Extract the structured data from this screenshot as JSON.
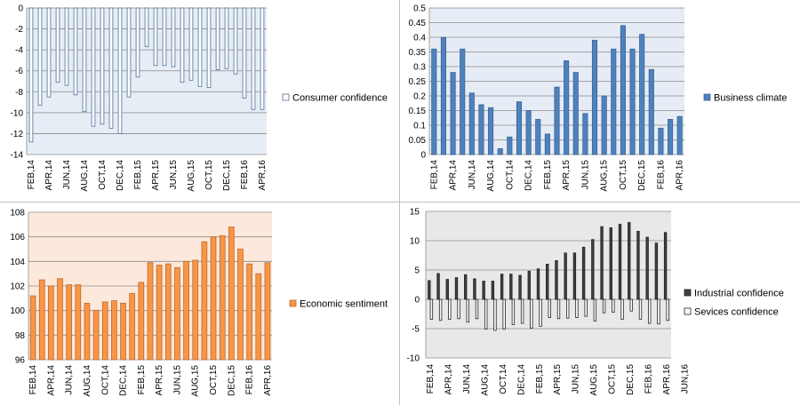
{
  "months": [
    "FEB,14",
    "MAR,14",
    "APR,14",
    "MAY,14",
    "JUN,14",
    "JUL,14",
    "AUG,14",
    "SEP,14",
    "OCT,14",
    "NOV,14",
    "DEC,14",
    "JAN,15",
    "FEB,15",
    "MAR,15",
    "APR,15",
    "MAY,15",
    "JUN,15",
    "JUL,15",
    "AUG,15",
    "SEP,15",
    "OCT,15",
    "NOV,15",
    "DEC,15",
    "JAN,16",
    "FEB,16",
    "MAR,16",
    "APR,16"
  ],
  "colors": {
    "consumer_fill": "#ffffff",
    "consumer_stroke": "#4f6f94",
    "consumer_bg": "#e6edf5",
    "business_fill": "#4f81bd",
    "business_stroke": "#3a6597",
    "business_bg": "#e6ecf5",
    "economic_fill": "#f79646",
    "economic_stroke": "#c0692a",
    "economic_bg": "#fde9dc",
    "industrial_fill": "#404040",
    "services_fill": "#ffffff",
    "dual_stroke": "#222222",
    "dual_bg": "#e8e8e8",
    "grid": "#8c8c8c"
  },
  "chart_data": [
    {
      "type": "bar",
      "categories_ref": "months",
      "series": [
        {
          "name": "Consumer confidence",
          "values": [
            -12.8,
            -9.3,
            -8.5,
            -7.1,
            -7.4,
            -8.3,
            -9.9,
            -11.3,
            -11.1,
            -11.5,
            -12.0,
            -8.5,
            -6.6,
            -3.7,
            -5.5,
            -5.5,
            -5.6,
            -7.1,
            -6.9,
            -7.5,
            -7.6,
            -5.9,
            -5.8,
            -6.3,
            -8.6,
            -9.7,
            -9.7
          ]
        }
      ],
      "ylim": [
        -14,
        0
      ],
      "yticks": [
        "0",
        "-2",
        "-4",
        "-6",
        "-8",
        "-10",
        "-12",
        "-14"
      ],
      "xticks": [
        "FEB,14",
        "APR,14",
        "JUN,14",
        "AUG,14",
        "OCT,14",
        "DEC,14",
        "FEB,15",
        "APR,15",
        "JUN,15",
        "AUG,15",
        "OCT,15",
        "DEC,15",
        "FEB,16",
        "APR,16"
      ],
      "legend_position": "right",
      "grid": true
    },
    {
      "type": "bar",
      "categories_ref": "months",
      "series": [
        {
          "name": "Business climate",
          "values": [
            0.36,
            0.4,
            0.28,
            0.36,
            0.21,
            0.17,
            0.16,
            0.02,
            0.06,
            0.18,
            0.15,
            0.12,
            0.07,
            0.23,
            0.32,
            0.28,
            0.14,
            0.39,
            0.2,
            0.36,
            0.44,
            0.36,
            0.41,
            0.29,
            0.09,
            0.12,
            0.13
          ]
        }
      ],
      "ylim": [
        0,
        0.5
      ],
      "yticks": [
        "0.5",
        "0.45",
        "0.4",
        "0.35",
        "0.3",
        "0.25",
        "0.2",
        "0.15",
        "0.1",
        "0.05",
        "0"
      ],
      "xticks": [
        "FEB,14",
        "APR,14",
        "JUN,14",
        "AUG,14",
        "OCT,14",
        "DEC,14",
        "FEB,15",
        "APR,15",
        "JUN,15",
        "AUG,15",
        "OCT,15",
        "DEC,15",
        "FEB,16",
        "APR,16"
      ],
      "legend_position": "right",
      "grid": true
    },
    {
      "type": "bar",
      "categories_ref": "months",
      "series": [
        {
          "name": "Economic sentiment",
          "values": [
            101.2,
            102.5,
            102.0,
            102.6,
            102.1,
            102.1,
            100.6,
            100.0,
            100.7,
            100.8,
            100.6,
            101.4,
            102.3,
            103.9,
            103.7,
            103.8,
            103.5,
            104.0,
            104.1,
            105.6,
            106.0,
            106.1,
            106.8,
            105.0,
            103.8,
            103.0,
            103.9
          ]
        }
      ],
      "ylim": [
        96,
        108
      ],
      "yticks": [
        "108",
        "106",
        "104",
        "102",
        "100",
        "98",
        "96"
      ],
      "xticks": [
        "FEB,14",
        "APR,14",
        "JUN,14",
        "AUG,14",
        "OCT,14",
        "DEC,14",
        "FEB,15",
        "APR,15",
        "JUN,15",
        "AUG,15",
        "OCT,15",
        "DEC,15",
        "FEB,16",
        "APR,16"
      ],
      "legend_position": "right",
      "grid": true
    },
    {
      "type": "bar",
      "categories_ref": "months",
      "series": [
        {
          "name": "Industrial confidence",
          "values": [
            3.2,
            4.4,
            3.4,
            3.7,
            4.2,
            3.5,
            3.1,
            3.1,
            4.3,
            4.3,
            4.1,
            4.8,
            5.2,
            6.0,
            6.6,
            7.9,
            7.9,
            8.9,
            10.2,
            12.4,
            12.2,
            12.8,
            13.1,
            11.6,
            10.6,
            9.6,
            11.4
          ]
        },
        {
          "name": "Sevices confidence",
          "values": [
            -3.4,
            -3.6,
            -3.4,
            -3.3,
            -3.9,
            -3.3,
            -5.1,
            -5.3,
            -5.1,
            -4.3,
            -4.1,
            -4.9,
            -4.6,
            -3.1,
            -3.3,
            -3.2,
            -3.1,
            -2.9,
            -3.7,
            -2.3,
            -2.2,
            -3.4,
            -2.0,
            -3.4,
            -4.1,
            -4.2,
            -3.6
          ]
        }
      ],
      "ylim": [
        -10,
        15
      ],
      "yticks": [
        "15",
        "10",
        "5",
        "0",
        "-5",
        "-10"
      ],
      "xticks": [
        "FEB,14",
        "APR,14",
        "JUN,14",
        "AUG,14",
        "OCT,14",
        "DEC,14",
        "FEB,15",
        "APR,15",
        "JUN,15",
        "AUG,15",
        "OCT,15",
        "DEC,15",
        "FEB,16",
        "APR,16",
        "JUN,16"
      ],
      "legend_position": "right",
      "grid": true
    }
  ]
}
